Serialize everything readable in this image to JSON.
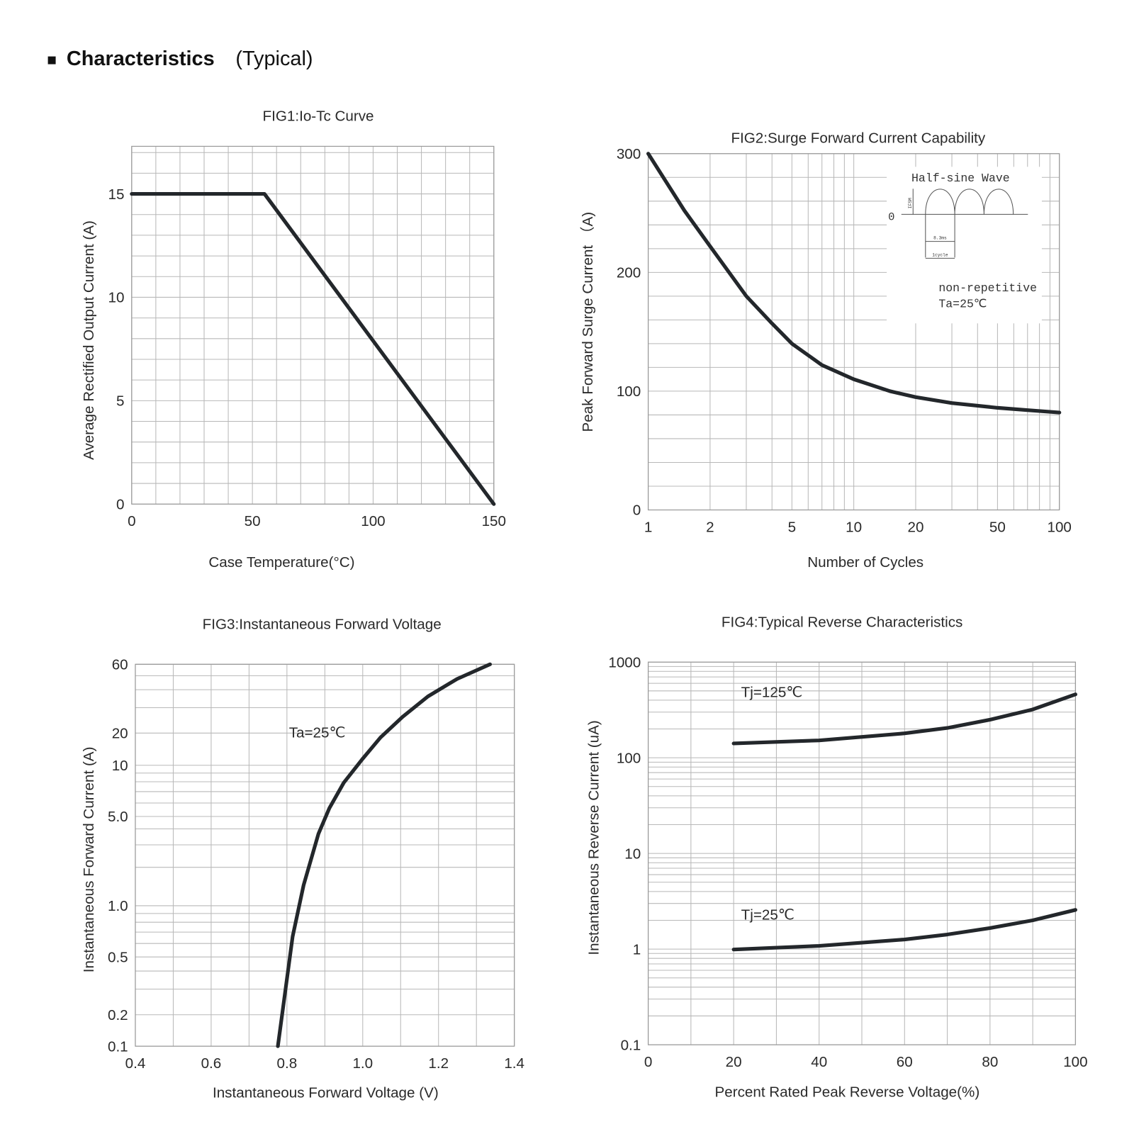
{
  "header": {
    "bullet": "■",
    "title": "Characteristics",
    "subtitle": "(Typical)"
  },
  "chart_data": [
    {
      "id": "fig1",
      "type": "line",
      "title": "FIG1:Io-Tc Curve",
      "xlabel": "Case Temperature(°C)",
      "ylabel": "Average Rectified Output Current (A)",
      "xlim": [
        0,
        150
      ],
      "ylim": [
        0,
        17.3
      ],
      "xscale": "linear",
      "yscale": "linear",
      "grid": true,
      "xticks": [
        {
          "v": 0,
          "t": "0"
        },
        {
          "v": 50,
          "t": "50"
        },
        {
          "v": 100,
          "t": "100"
        },
        {
          "v": 150,
          "t": "150"
        }
      ],
      "yticks": [
        {
          "v": 0,
          "t": "0"
        },
        {
          "v": 5,
          "t": "5"
        },
        {
          "v": 10,
          "t": "10"
        },
        {
          "v": 15,
          "t": "15"
        }
      ],
      "series": [
        {
          "name": "Io",
          "x": [
            0,
            55,
            150
          ],
          "y": [
            15,
            15,
            0
          ]
        }
      ],
      "annotations": []
    },
    {
      "id": "fig2",
      "type": "line",
      "title": "FIG2:Surge Forward Current Capability",
      "xlabel": "Number of Cycles",
      "ylabel": "Peak Forward Surge Current （A)",
      "xlim": [
        1,
        100
      ],
      "ylim": [
        0,
        300
      ],
      "xscale": "log",
      "yscale": "linear",
      "grid": true,
      "xticks": [
        {
          "v": 1,
          "t": "1"
        },
        {
          "v": 2,
          "t": "2"
        },
        {
          "v": 5,
          "t": "5"
        },
        {
          "v": 10,
          "t": "10"
        },
        {
          "v": 20,
          "t": "20"
        },
        {
          "v": 50,
          "t": "50"
        },
        {
          "v": 100,
          "t": "100"
        }
      ],
      "yticks": [
        {
          "v": 0,
          "t": "0"
        },
        {
          "v": 100,
          "t": "100"
        },
        {
          "v": 200,
          "t": "200"
        },
        {
          "v": 300,
          "t": "300"
        }
      ],
      "series": [
        {
          "name": "IFSM",
          "x": [
            1,
            1.5,
            2,
            3,
            4,
            5,
            7,
            10,
            15,
            20,
            30,
            50,
            70,
            100
          ],
          "y": [
            300,
            252,
            222,
            180,
            157,
            140,
            122,
            110,
            100,
            95,
            90,
            86,
            84,
            82
          ]
        }
      ],
      "inset": {
        "title": "Half-sine Wave",
        "zero": "0",
        "ifsm": "IFSM",
        "period": "8.3ms",
        "cycle": "1cycle",
        "note1": "non-repetitive",
        "note2": "Ta=25℃"
      }
    },
    {
      "id": "fig3",
      "type": "line",
      "title": "FIG3:Instantaneous Forward Voltage",
      "xlabel": "Instantaneous Forward Voltage (V)",
      "ylabel": "Instantaneous Forward Current (A)",
      "xlim": [
        0.4,
        1.4
      ],
      "ylim": [
        0.1,
        60
      ],
      "xscale": "linear",
      "yscale": "log",
      "grid": true,
      "xticks": [
        {
          "v": 0.4,
          "t": "0.4"
        },
        {
          "v": 0.6,
          "t": "0.6"
        },
        {
          "v": 0.8,
          "t": "0.8"
        },
        {
          "v": 1.0,
          "t": "1.0"
        },
        {
          "v": 1.2,
          "t": "1.2"
        },
        {
          "v": 1.4,
          "t": "1.4"
        }
      ],
      "yticks": [
        {
          "v": 60,
          "t": "60"
        },
        {
          "v": 20,
          "t": "20"
        },
        {
          "v": 10,
          "t": "10"
        },
        {
          "v": 5,
          "t": "5.0"
        },
        {
          "v": 1,
          "t": "1.0"
        },
        {
          "v": 0.5,
          "t": "0.5"
        },
        {
          "v": 0.2,
          "t": "0.2"
        },
        {
          "v": 0.1,
          "t": "0.1"
        }
      ],
      "series": [
        {
          "name": "Ta=25℃",
          "x": [
            0.776,
            0.815,
            0.844,
            0.883,
            0.912,
            0.95,
            0.998,
            1.047,
            1.105,
            1.172,
            1.249,
            1.336
          ],
          "y": [
            0.1,
            0.66,
            1.45,
            3.65,
            5.6,
            7.9,
            11.3,
            18.2,
            25.9,
            35.9,
            47.5,
            60
          ]
        }
      ],
      "annotations": [
        {
          "text": "Ta=25℃"
        }
      ]
    },
    {
      "id": "fig4",
      "type": "line",
      "title": "FIG4:Typical Reverse Characteristics",
      "xlabel": "Percent Rated Peak Reverse Voltage(%)",
      "ylabel": "Instantaneous Reverse Current (uA)",
      "xlim": [
        0,
        100
      ],
      "ylim": [
        0.1,
        1000
      ],
      "xscale": "linear",
      "yscale": "log",
      "grid": true,
      "xticks": [
        {
          "v": 0,
          "t": "0"
        },
        {
          "v": 20,
          "t": "20"
        },
        {
          "v": 40,
          "t": "40"
        },
        {
          "v": 60,
          "t": "60"
        },
        {
          "v": 80,
          "t": "80"
        },
        {
          "v": 100,
          "t": "100"
        }
      ],
      "yticks": [
        {
          "v": 1000,
          "t": "1000"
        },
        {
          "v": 100,
          "t": "100"
        },
        {
          "v": 10,
          "t": "10"
        },
        {
          "v": 1,
          "t": "1"
        },
        {
          "v": 0.1,
          "t": "0.1"
        }
      ],
      "series": [
        {
          "name": "Tj=125℃",
          "x": [
            20,
            40,
            60,
            70,
            80,
            90,
            100
          ],
          "y": [
            141,
            152,
            180,
            205,
            250,
            320,
            460
          ]
        },
        {
          "name": "Tj=25℃",
          "x": [
            20,
            40,
            60,
            70,
            80,
            90,
            100
          ],
          "y": [
            0.99,
            1.08,
            1.26,
            1.42,
            1.66,
            2.0,
            2.57
          ]
        }
      ],
      "annotations": [
        {
          "text": "Tj=125℃"
        },
        {
          "text": "Tj=25℃"
        }
      ]
    }
  ]
}
